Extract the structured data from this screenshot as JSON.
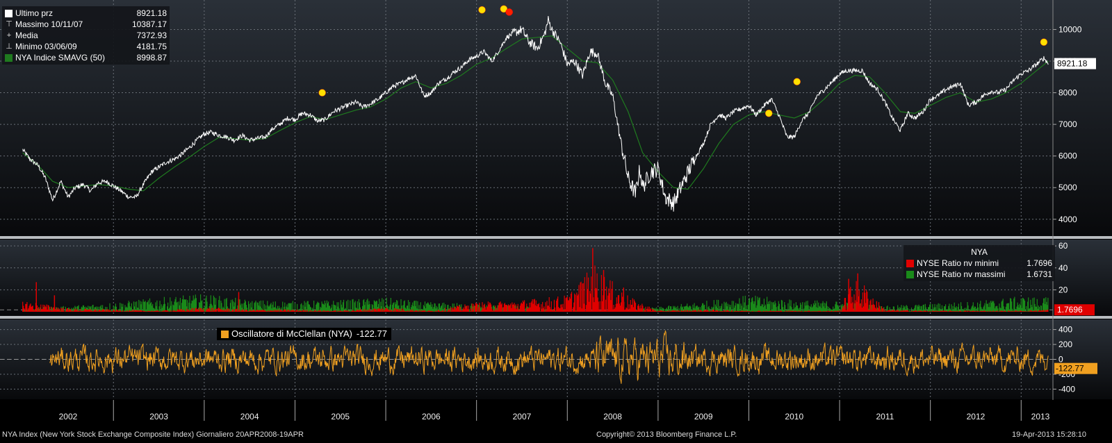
{
  "chart_data": [
    {
      "type": "line",
      "panel": "price",
      "ylim": [
        3600,
        10800
      ],
      "yticks": [
        4000,
        5000,
        6000,
        7000,
        8000,
        9000,
        10000
      ],
      "last_value_tag": "8921.18",
      "legend": [
        {
          "glyph": "square-icon",
          "label": "Ultimo prz",
          "value": "8921.18",
          "color": "#ffffff"
        },
        {
          "glyph": "max-marker-icon",
          "label": "Massimo 10/11/07",
          "value": "10387.17"
        },
        {
          "glyph": "mean-marker-icon",
          "label": "Media",
          "value": "7372.93"
        },
        {
          "glyph": "min-marker-icon",
          "label": "Minimo 03/06/09",
          "value": "4181.75"
        },
        {
          "glyph": "square-icon",
          "label": "NYA Indice SMAVG (50)",
          "value": "8998.87",
          "color": "#1f7a1f"
        }
      ],
      "series": [
        {
          "color": "#ffffff",
          "x": [
            2002.0,
            2002.08,
            2002.17,
            2002.25,
            2002.33,
            2002.42,
            2002.5,
            2002.58,
            2002.67,
            2002.75,
            2002.83,
            2002.92,
            2003.0,
            2003.08,
            2003.17,
            2003.25,
            2003.33,
            2003.42,
            2003.5,
            2003.58,
            2003.67,
            2003.75,
            2003.83,
            2003.92,
            2004.0,
            2004.08,
            2004.17,
            2004.25,
            2004.33,
            2004.42,
            2004.5,
            2004.58,
            2004.67,
            2004.75,
            2004.83,
            2004.92,
            2005.0,
            2005.08,
            2005.17,
            2005.25,
            2005.33,
            2005.42,
            2005.5,
            2005.58,
            2005.67,
            2005.75,
            2005.83,
            2005.92,
            2006.0,
            2006.08,
            2006.17,
            2006.25,
            2006.33,
            2006.42,
            2006.5,
            2006.58,
            2006.67,
            2006.75,
            2006.83,
            2006.92,
            2007.0,
            2007.08,
            2007.17,
            2007.25,
            2007.33,
            2007.42,
            2007.5,
            2007.58,
            2007.67,
            2007.75,
            2007.79,
            2007.83,
            2007.92,
            2008.0,
            2008.08,
            2008.17,
            2008.25,
            2008.33,
            2008.42,
            2008.5,
            2008.58,
            2008.67,
            2008.75,
            2008.8,
            2008.83,
            2008.92,
            2009.0,
            2009.08,
            2009.17,
            2009.25,
            2009.33,
            2009.42,
            2009.5,
            2009.58,
            2009.67,
            2009.75,
            2009.83,
            2009.92,
            2010.0,
            2010.08,
            2010.17,
            2010.25,
            2010.33,
            2010.42,
            2010.5,
            2010.58,
            2010.67,
            2010.75,
            2010.83,
            2010.92,
            2011.0,
            2011.08,
            2011.17,
            2011.25,
            2011.33,
            2011.42,
            2011.5,
            2011.58,
            2011.67,
            2011.75,
            2011.83,
            2011.92,
            2012.0,
            2012.08,
            2012.17,
            2012.25,
            2012.33,
            2012.42,
            2012.5,
            2012.58,
            2012.67,
            2012.75,
            2012.83,
            2012.92,
            2013.0,
            2013.08,
            2013.17,
            2013.25,
            2013.3
          ],
          "y": [
            6200,
            5900,
            5700,
            5300,
            4600,
            5200,
            4700,
            5000,
            5100,
            4900,
            5150,
            5200,
            5050,
            4900,
            4700,
            4700,
            5100,
            5500,
            5650,
            5800,
            5900,
            6050,
            6250,
            6500,
            6700,
            6750,
            6650,
            6600,
            6500,
            6650,
            6500,
            6550,
            6600,
            6850,
            7000,
            7200,
            7150,
            7350,
            7300,
            7100,
            7150,
            7400,
            7500,
            7600,
            7700,
            7550,
            7650,
            7800,
            8000,
            8200,
            8300,
            8450,
            8550,
            7900,
            8000,
            8300,
            8450,
            8650,
            8800,
            9050,
            9150,
            9300,
            9000,
            9350,
            9750,
            9900,
            10000,
            9600,
            9400,
            9850,
            10300,
            10000,
            9600,
            8900,
            9000,
            8550,
            9300,
            9250,
            8300,
            7900,
            6600,
            5300,
            4800,
            5600,
            5000,
            5500,
            5600,
            4700,
            4500,
            5000,
            5500,
            6000,
            6400,
            7000,
            7300,
            7200,
            7400,
            7500,
            7600,
            7300,
            7600,
            7800,
            7300,
            6600,
            6600,
            7100,
            7400,
            7900,
            8100,
            8350,
            8600,
            8700,
            8700,
            8700,
            8300,
            8100,
            7700,
            7200,
            6800,
            7350,
            7200,
            7400,
            7800,
            7900,
            8100,
            8200,
            8300,
            7600,
            7700,
            7900,
            8050,
            8000,
            8100,
            8400,
            8600,
            8700,
            8900,
            9100,
            8921
          ]
        },
        {
          "color": "#1f7a1f",
          "x": [
            2002.0,
            2002.17,
            2002.33,
            2002.5,
            2002.67,
            2002.83,
            2003.0,
            2003.17,
            2003.33,
            2003.5,
            2003.67,
            2003.83,
            2004.0,
            2004.17,
            2004.33,
            2004.5,
            2004.67,
            2004.83,
            2005.0,
            2005.17,
            2005.33,
            2005.5,
            2005.67,
            2005.83,
            2006.0,
            2006.17,
            2006.33,
            2006.5,
            2006.67,
            2006.83,
            2007.0,
            2007.17,
            2007.33,
            2007.5,
            2007.67,
            2007.83,
            2008.0,
            2008.17,
            2008.33,
            2008.5,
            2008.67,
            2008.83,
            2009.0,
            2009.17,
            2009.33,
            2009.5,
            2009.67,
            2009.83,
            2010.0,
            2010.17,
            2010.33,
            2010.5,
            2010.67,
            2010.83,
            2011.0,
            2011.17,
            2011.33,
            2011.5,
            2011.67,
            2011.83,
            2012.0,
            2012.17,
            2012.33,
            2012.5,
            2012.67,
            2012.83,
            2013.0,
            2013.17,
            2013.3
          ],
          "y": [
            6100,
            5700,
            5200,
            5000,
            5050,
            5100,
            5050,
            4950,
            4900,
            5300,
            5650,
            5950,
            6300,
            6600,
            6550,
            6500,
            6550,
            6800,
            7050,
            7250,
            7150,
            7300,
            7450,
            7550,
            7800,
            8150,
            8350,
            8150,
            8300,
            8550,
            8900,
            9100,
            9400,
            9700,
            9750,
            9800,
            9400,
            9000,
            8950,
            8400,
            7400,
            6100,
            5500,
            5000,
            4950,
            5600,
            6400,
            7000,
            7300,
            7400,
            7300,
            7200,
            7400,
            7800,
            8300,
            8550,
            8500,
            8000,
            7400,
            7350,
            7600,
            7850,
            8000,
            7700,
            7800,
            8000,
            8300,
            8700,
            8999
          ]
        }
      ],
      "annotations_y": [
        {
          "x": 2005.3,
          "y": 8000,
          "color": "#ffe000"
        },
        {
          "x": 2007.06,
          "y": 10620,
          "color": "#ffe000"
        },
        {
          "x": 2007.3,
          "y": 10650,
          "color": "#ffe000"
        },
        {
          "x": 2007.36,
          "y": 10550,
          "color": "#ff2000"
        },
        {
          "x": 2010.22,
          "y": 7350,
          "color": "#ffe000"
        },
        {
          "x": 2010.53,
          "y": 8350,
          "color": "#ffe000"
        },
        {
          "x": 2013.25,
          "y": 9600,
          "color": "#ffe000"
        }
      ]
    },
    {
      "type": "bar",
      "panel": "ratio",
      "ylim": [
        0,
        62
      ],
      "yticks": [
        20,
        40,
        60
      ],
      "dashed_level": 1.7696,
      "last_value_tag": "1.7696",
      "legend_title": "NYA",
      "legend": [
        {
          "glyph": "square-icon",
          "label": "NYSE Ratio nv minimi",
          "value": "1.7696",
          "color": "#e00000"
        },
        {
          "glyph": "square-icon",
          "label": "NYSE Ratio nv massimi",
          "value": "1.6731",
          "color": "#1a8a1a"
        }
      ],
      "series": [
        {
          "color": "#1a8a1a",
          "x": [
            2002.0,
            2002.5,
            2003.0,
            2003.5,
            2004.0,
            2004.5,
            2005.0,
            2005.5,
            2006.0,
            2006.5,
            2007.0,
            2007.5,
            2008.0,
            2008.5,
            2009.0,
            2009.5,
            2010.0,
            2010.5,
            2011.0,
            2011.5,
            2012.0,
            2012.5,
            2013.0,
            2013.3
          ],
          "y": [
            3,
            5,
            8,
            12,
            15,
            10,
            9,
            10,
            12,
            8,
            7,
            5,
            2,
            1,
            4,
            9,
            14,
            10,
            9,
            5,
            7,
            9,
            13,
            12
          ]
        },
        {
          "color": "#e00000",
          "x": [
            2002.0,
            2002.5,
            2003.0,
            2003.5,
            2004.0,
            2004.5,
            2005.0,
            2005.5,
            2006.0,
            2006.5,
            2007.0,
            2007.5,
            2008.0,
            2008.3,
            2008.5,
            2008.7,
            2009.0,
            2009.5,
            2010.0,
            2010.5,
            2011.0,
            2011.1,
            2011.2,
            2011.5,
            2012.0,
            2012.5,
            2013.0,
            2013.3
          ],
          "y": [
            10,
            3,
            2,
            1,
            4,
            2,
            2,
            1,
            4,
            1,
            8,
            10,
            14,
            40,
            25,
            12,
            1,
            2,
            1,
            1,
            1,
            20,
            30,
            2,
            1,
            1,
            1,
            2
          ]
        }
      ],
      "spikes": [
        {
          "x": 2002.15,
          "y": 27,
          "color": "#e00000"
        },
        {
          "x": 2002.35,
          "y": 15,
          "color": "#e00000"
        },
        {
          "x": 2004.38,
          "y": 18,
          "color": "#e00000"
        },
        {
          "x": 2008.28,
          "y": 58,
          "color": "#e00000"
        },
        {
          "x": 2008.4,
          "y": 38,
          "color": "#e00000"
        },
        {
          "x": 2008.62,
          "y": 22,
          "color": "#e00000"
        },
        {
          "x": 2011.1,
          "y": 30,
          "color": "#e00000"
        },
        {
          "x": 2011.2,
          "y": 35,
          "color": "#e00000"
        }
      ]
    },
    {
      "type": "line",
      "panel": "oscillator",
      "ylim": [
        -480,
        480
      ],
      "yticks": [
        400,
        200,
        0,
        -200,
        -400
      ],
      "last_value_tag": "-122.77",
      "legend": [
        {
          "glyph": "square-icon",
          "label": "Oscillatore di McClellan (NYA)",
          "value": "-122.77",
          "color": "#f0a020"
        }
      ],
      "series": [
        {
          "color": "#f0a020",
          "amplitude": 180,
          "peak": 380,
          "trough": -420,
          "last": -122.77
        }
      ]
    }
  ],
  "xaxis": {
    "range": [
      2001.75,
      2013.35
    ],
    "years": [
      "2002",
      "2003",
      "2004",
      "2005",
      "2006",
      "2007",
      "2008",
      "2009",
      "2010",
      "2011",
      "2012",
      "2013"
    ]
  },
  "footer": {
    "left": "NYA Index (New York Stock Exchange Composite Index)  Giornaliero 20APR2008-19APR",
    "center": "Copyright© 2013 Bloomberg Finance L.P.",
    "right": "19-Apr-2013 15:28:10"
  }
}
